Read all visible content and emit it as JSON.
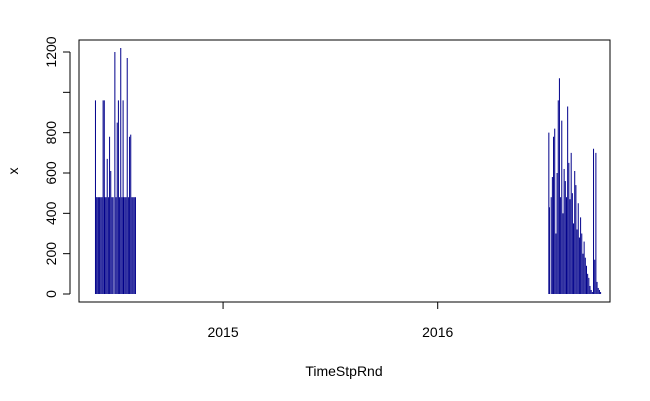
{
  "chart_data": {
    "type": "bar",
    "xlabel": "TimeStpRnd",
    "ylabel": "x",
    "xlim": [
      "2014-05-01",
      "2016-10-20"
    ],
    "ylim": [
      0,
      1250
    ],
    "x_ticks": [
      {
        "date": "2015-01-01",
        "label": "2015"
      },
      {
        "date": "2016-01-01",
        "label": "2016"
      }
    ],
    "y_ticks": [
      0,
      200,
      400,
      600,
      800,
      1200
    ],
    "grid": false,
    "line_color": "#00008B",
    "series": [
      {
        "x": [
          "2014-05-29",
          "2014-05-31",
          "2014-06-01",
          "2014-06-03",
          "2014-06-05",
          "2014-06-07",
          "2014-06-09",
          "2014-06-11",
          "2014-06-13",
          "2014-06-14",
          "2014-06-16",
          "2014-06-18",
          "2014-06-20",
          "2014-06-22",
          "2014-06-24",
          "2014-06-26",
          "2014-06-28",
          "2014-07-01",
          "2014-07-03",
          "2014-07-05",
          "2014-07-07",
          "2014-07-09",
          "2014-07-11",
          "2014-07-13",
          "2014-07-15",
          "2014-07-16",
          "2014-07-18",
          "2014-07-20",
          "2014-07-22",
          "2014-07-24",
          "2014-07-26",
          "2014-07-28",
          "2014-07-30",
          "2014-08-01",
          "2014-08-03",
          "2014-08-05",
          "2014-08-07",
          "2014-08-09",
          "2014-08-11",
          "2014-08-13",
          "2014-08-15",
          "2014-08-17",
          "2014-08-19",
          "2014-08-21",
          "2014-08-23",
          "2014-08-25",
          "2016-07-08",
          "2016-07-09",
          "2016-07-12",
          "2016-07-14",
          "2016-07-16",
          "2016-07-18",
          "2016-07-20",
          "2016-07-22",
          "2016-07-24",
          "2016-07-26",
          "2016-07-28",
          "2016-07-30",
          "2016-08-01",
          "2016-08-03",
          "2016-08-05",
          "2016-08-07",
          "2016-08-09",
          "2016-08-11",
          "2016-08-13",
          "2016-08-15",
          "2016-08-17",
          "2016-08-19",
          "2016-08-21",
          "2016-08-23",
          "2016-08-25",
          "2016-08-27",
          "2016-08-29",
          "2016-08-31",
          "2016-09-02",
          "2016-09-04",
          "2016-09-06",
          "2016-09-08",
          "2016-09-10",
          "2016-09-12",
          "2016-09-14",
          "2016-09-16",
          "2016-09-18",
          "2016-09-20",
          "2016-09-22",
          "2016-09-24",
          "2016-09-26",
          "2016-09-28",
          "2016-09-30",
          "2016-10-02",
          "2016-10-04"
        ],
        "values": [
          960,
          480,
          480,
          480,
          480,
          480,
          480,
          960,
          960,
          480,
          480,
          670,
          480,
          780,
          610,
          480,
          480,
          1200,
          480,
          850,
          960,
          480,
          1220,
          480,
          960,
          480,
          480,
          480,
          1170,
          480,
          780,
          790,
          480,
          480,
          480,
          480,
          0,
          0,
          0,
          0,
          0,
          0,
          0,
          0,
          0,
          0,
          800,
          430,
          480,
          580,
          780,
          820,
          300,
          600,
          960,
          1070,
          480,
          860,
          400,
          620,
          560,
          480,
          930,
          650,
          470,
          700,
          500,
          350,
          610,
          540,
          320,
          450,
          280,
          380,
          300,
          200,
          260,
          180,
          140,
          100,
          80,
          40,
          20,
          10,
          720,
          170,
          700,
          60,
          30,
          20,
          10
        ]
      }
    ]
  }
}
